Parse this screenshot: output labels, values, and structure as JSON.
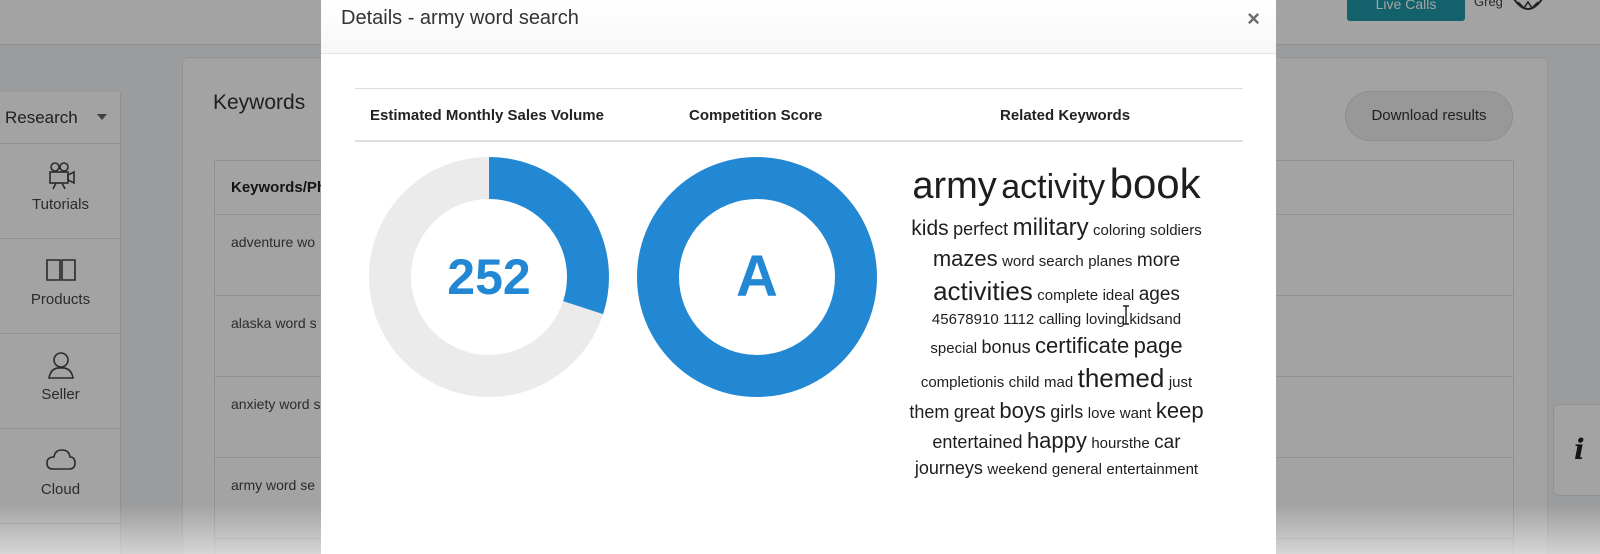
{
  "app": {
    "live_calls_label": "Live Calls",
    "user_label": "Greg",
    "sidebar": {
      "dropdown_label": "Research",
      "items": [
        {
          "label": "Tutorials",
          "icon": "video-camera-icon"
        },
        {
          "label": "Products",
          "icon": "book-icon"
        },
        {
          "label": "Seller",
          "icon": "user-icon"
        },
        {
          "label": "Cloud",
          "icon": "cloud-icon"
        }
      ]
    },
    "keywords_title": "Keywords",
    "download_label": "Download results",
    "table": {
      "header": "Keywords/Ph",
      "rows": [
        "adventure wo",
        "alaska word s",
        "anxiety word s",
        "army word se"
      ]
    },
    "info_label": "i"
  },
  "modal": {
    "title": "Details - army word search",
    "close_label": "×",
    "columns": [
      "Estimated Monthly Sales Volume",
      "Competition Score",
      "Related Keywords"
    ],
    "sales_volume": {
      "value": "252",
      "fill_fraction": 0.3
    },
    "competition_score": {
      "grade": "A",
      "fill_fraction": 1.0
    },
    "colors": {
      "accent": "#2388d4",
      "track": "#ebebeb"
    },
    "related_keywords_lines": [
      [
        {
          "w": "army",
          "s": 38
        },
        {
          "w": "activity",
          "s": 34
        },
        {
          "w": "book",
          "s": 42
        }
      ],
      [
        {
          "w": "kids",
          "s": 21
        },
        {
          "w": "perfect",
          "s": 18
        },
        {
          "w": "military",
          "s": 24
        },
        {
          "w": "coloring",
          "s": 15
        },
        {
          "w": "soldiers",
          "s": 15
        }
      ],
      [
        {
          "w": "mazes",
          "s": 22
        },
        {
          "w": "word search",
          "s": 15
        },
        {
          "w": "planes",
          "s": 15
        },
        {
          "w": "more",
          "s": 19
        }
      ],
      [
        {
          "w": "activities",
          "s": 26
        },
        {
          "w": "complete",
          "s": 15
        },
        {
          "w": "ideal",
          "s": 15
        },
        {
          "w": "ages",
          "s": 19
        }
      ],
      [
        {
          "w": "45678910",
          "s": 15
        },
        {
          "w": "1112",
          "s": 15
        },
        {
          "w": "calling",
          "s": 15
        },
        {
          "w": "loving",
          "s": 15
        },
        {
          "w": "kidsand",
          "s": 15
        }
      ],
      [
        {
          "w": "special",
          "s": 15
        },
        {
          "w": "bonus",
          "s": 18
        },
        {
          "w": "certificate",
          "s": 22
        },
        {
          "w": "page",
          "s": 22
        }
      ],
      [
        {
          "w": "completionis",
          "s": 15
        },
        {
          "w": "child",
          "s": 15
        },
        {
          "w": "mad",
          "s": 15
        },
        {
          "w": "themed",
          "s": 26
        },
        {
          "w": "just",
          "s": 15
        }
      ],
      [
        {
          "w": "them",
          "s": 18
        },
        {
          "w": "great",
          "s": 18
        },
        {
          "w": "boys",
          "s": 22
        },
        {
          "w": "girls",
          "s": 18
        },
        {
          "w": "love",
          "s": 15
        },
        {
          "w": "want",
          "s": 15
        },
        {
          "w": "keep",
          "s": 22
        }
      ],
      [
        {
          "w": "entertained",
          "s": 18
        },
        {
          "w": "happy",
          "s": 22
        },
        {
          "w": "hoursthe",
          "s": 15
        },
        {
          "w": "car",
          "s": 19
        }
      ],
      [
        {
          "w": "journeys",
          "s": 18
        },
        {
          "w": "weekend",
          "s": 15
        },
        {
          "w": "general",
          "s": 15
        },
        {
          "w": "entertainment",
          "s": 15
        }
      ]
    ]
  }
}
